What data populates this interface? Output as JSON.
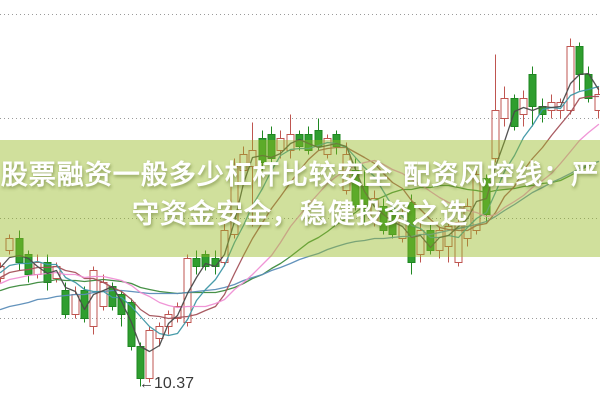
{
  "title_overlay": {
    "line1": "股票融资一般多少杠杆比较安全 配资风控线：严",
    "line2": "守资金安全，稳健投资之选",
    "text_color": "#ffffff",
    "band_color": "rgba(150,187,35,0.45)"
  },
  "annotation": {
    "arrow": "←",
    "label": "10.37",
    "price": 10.37
  },
  "chart_data": {
    "type": "candlestick",
    "title": "",
    "xlabel": "",
    "ylabel": "",
    "grid": "dotted-horizontal",
    "axis_labels_visible": false,
    "annotated_low": 10.37,
    "ylim": [
      10.33,
      11.34
    ],
    "gridline_prices": [
      11.3,
      11.04,
      10.79,
      10.54
    ],
    "colors": {
      "up_stroke": "#bf5550",
      "up_fill": "none",
      "down_fill": "#2f9e2f",
      "down_stroke": "#1f8722",
      "grid": "#9a9a9a"
    },
    "series": [
      {
        "name": "daily-k-line",
        "ohlc": [
          [
            10.64,
            10.68,
            10.63,
            10.67
          ],
          [
            10.71,
            10.75,
            10.7,
            10.74
          ],
          [
            10.74,
            10.76,
            10.66,
            10.68
          ],
          [
            10.7,
            10.71,
            10.63,
            10.65
          ],
          [
            10.65,
            10.7,
            10.64,
            10.68
          ],
          [
            10.68,
            10.7,
            10.61,
            10.63
          ],
          [
            10.64,
            10.68,
            10.63,
            10.67
          ],
          [
            10.61,
            10.63,
            10.54,
            10.55
          ],
          [
            10.55,
            10.62,
            10.54,
            10.6
          ],
          [
            10.61,
            10.62,
            10.53,
            10.54
          ],
          [
            10.52,
            10.67,
            10.5,
            10.66
          ],
          [
            10.57,
            10.65,
            10.56,
            10.63
          ],
          [
            10.62,
            10.63,
            10.56,
            10.57
          ],
          [
            10.6,
            10.61,
            10.52,
            10.55
          ],
          [
            10.58,
            10.59,
            10.46,
            10.47
          ],
          [
            10.47,
            10.48,
            10.37,
            10.39
          ],
          [
            10.39,
            10.52,
            10.38,
            10.51
          ],
          [
            10.49,
            10.53,
            10.47,
            10.52
          ],
          [
            10.52,
            10.56,
            10.5,
            10.55
          ],
          [
            10.54,
            10.58,
            10.53,
            10.57
          ],
          [
            10.53,
            10.7,
            10.52,
            10.69
          ],
          [
            10.69,
            10.71,
            10.65,
            10.67
          ],
          [
            10.7,
            10.71,
            10.66,
            10.67
          ],
          [
            10.69,
            10.71,
            10.65,
            10.67
          ],
          [
            10.68,
            10.78,
            10.67,
            10.76
          ],
          [
            10.75,
            10.94,
            10.74,
            10.92
          ],
          [
            10.91,
            10.97,
            10.89,
            10.95
          ],
          [
            10.92,
            11.03,
            10.77,
            10.96
          ],
          [
            10.99,
            11.01,
            10.91,
            10.93
          ],
          [
            11.0,
            11.02,
            10.92,
            10.94
          ],
          [
            10.96,
            11.01,
            10.94,
            10.99
          ],
          [
            10.96,
            11.05,
            10.94,
            11.0
          ],
          [
            11.0,
            11.01,
            10.96,
            10.97
          ],
          [
            11.0,
            11.02,
            10.95,
            10.96
          ],
          [
            11.01,
            11.04,
            10.96,
            10.97
          ],
          [
            10.95,
            11.0,
            10.94,
            10.99
          ],
          [
            11.0,
            11.01,
            10.95,
            10.97
          ],
          [
            10.86,
            10.98,
            10.85,
            10.95
          ],
          [
            10.91,
            10.94,
            10.81,
            10.82
          ],
          [
            10.87,
            10.91,
            10.78,
            10.8
          ],
          [
            10.78,
            10.86,
            10.77,
            10.84
          ],
          [
            10.82,
            10.84,
            10.75,
            10.76
          ],
          [
            10.81,
            10.83,
            10.74,
            10.75
          ],
          [
            10.74,
            10.82,
            10.73,
            10.8
          ],
          [
            10.83,
            10.85,
            10.65,
            10.68
          ],
          [
            10.7,
            10.78,
            10.68,
            10.76
          ],
          [
            10.76,
            10.78,
            10.7,
            10.71
          ],
          [
            10.71,
            10.77,
            10.69,
            10.76
          ],
          [
            10.72,
            10.78,
            10.68,
            10.77
          ],
          [
            10.68,
            10.8,
            10.67,
            10.78
          ],
          [
            10.74,
            10.84,
            10.72,
            10.82
          ],
          [
            10.76,
            10.92,
            10.75,
            10.9
          ],
          [
            10.89,
            10.9,
            10.78,
            10.8
          ],
          [
            10.94,
            11.2,
            10.93,
            11.06
          ],
          [
            11.04,
            11.12,
            11.02,
            11.09
          ],
          [
            11.09,
            11.1,
            11.01,
            11.02
          ],
          [
            11.05,
            11.11,
            11.02,
            11.09
          ],
          [
            11.15,
            11.17,
            11.02,
            11.07
          ],
          [
            11.07,
            11.09,
            11.03,
            11.05
          ],
          [
            11.06,
            11.1,
            11.04,
            11.08
          ],
          [
            11.06,
            11.09,
            11.04,
            11.08
          ],
          [
            11.06,
            11.24,
            11.05,
            11.22
          ],
          [
            11.22,
            11.23,
            11.11,
            11.15
          ],
          [
            11.15,
            11.17,
            11.08,
            11.09
          ],
          [
            11.06,
            11.12,
            11.04,
            11.1
          ]
        ]
      }
    ],
    "moving_averages": [
      {
        "name": "ma-long-green",
        "color": "#3d8b3d",
        "window": 24
      },
      {
        "name": "ma-long-blue",
        "color": "#5b8db8",
        "window": 40
      },
      {
        "name": "ma-mid-maroon",
        "color": "#a4525a",
        "window": 10
      },
      {
        "name": "ma-mid-teal",
        "color": "#3e97a5",
        "window": 6
      },
      {
        "name": "ma-short-pink",
        "color": "#ef8fd4",
        "window": 16
      },
      {
        "name": "ma-short-dark",
        "color": "#4a4a4a",
        "window": 3
      }
    ],
    "prehistory_closes": [
      10.42,
      10.43,
      10.44,
      10.45,
      10.46,
      10.47,
      10.48,
      10.48,
      10.49,
      10.5,
      10.5,
      10.51,
      10.52,
      10.52,
      10.53,
      10.54,
      10.54,
      10.55,
      10.56,
      10.56,
      10.57,
      10.57,
      10.58,
      10.58,
      10.59,
      10.59,
      10.6,
      10.6,
      10.61,
      10.61,
      10.62,
      10.62,
      10.62,
      10.63,
      10.63,
      10.64,
      10.64,
      10.65,
      10.66,
      10.67
    ]
  }
}
